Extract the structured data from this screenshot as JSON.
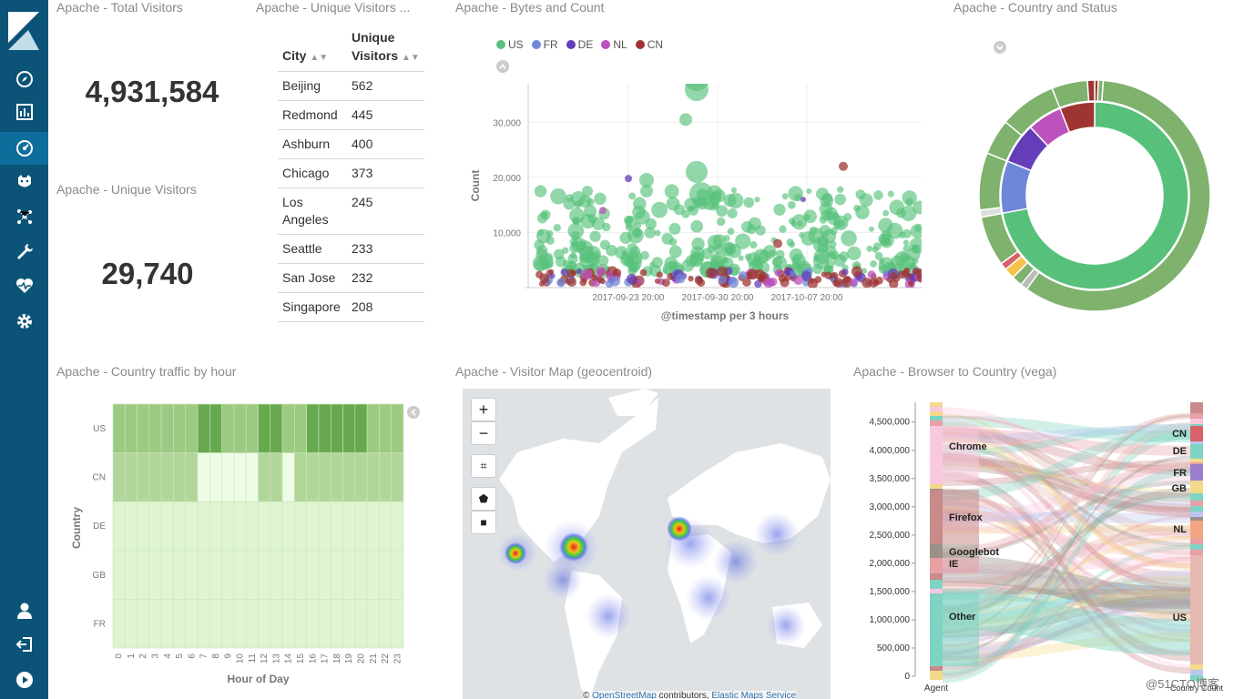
{
  "sidebar": {
    "items": [
      {
        "name": "discover-icon"
      },
      {
        "name": "visualize-icon"
      },
      {
        "name": "dashboard-icon"
      },
      {
        "name": "timelion-icon"
      },
      {
        "name": "graph-icon"
      },
      {
        "name": "dev-tools-icon"
      },
      {
        "name": "monitoring-icon"
      },
      {
        "name": "management-icon"
      }
    ],
    "bottom": [
      {
        "name": "user-icon"
      },
      {
        "name": "logout-icon"
      },
      {
        "name": "collapse-icon"
      }
    ]
  },
  "panels": {
    "total_visitors": {
      "title": "Apache - Total Visitors",
      "value": "4,931,584"
    },
    "unique_visitors_metric": {
      "title": "Apache - Unique Visitors",
      "value": "29,740"
    },
    "unique_visitors_table": {
      "title": "Apache - Unique Visitors ...",
      "columns": [
        "City",
        "Unique Visitors"
      ],
      "rows": [
        [
          "Beijing",
          "562"
        ],
        [
          "Redmond",
          "445"
        ],
        [
          "Ashburn",
          "400"
        ],
        [
          "Chicago",
          "373"
        ],
        [
          "Los Angeles",
          "245"
        ],
        [
          "Seattle",
          "233"
        ],
        [
          "San Jose",
          "232"
        ],
        [
          "Singapore",
          "208"
        ]
      ]
    },
    "bytes_count": {
      "title": "Apache - Bytes and Count"
    },
    "country_status": {
      "title": "Apache - Country and Status"
    },
    "traffic_by_hour": {
      "title": "Apache - Country traffic by hour"
    },
    "visitor_map": {
      "title": "Apache - Visitor Map (geocentroid)",
      "zoom_in": "+",
      "zoom_out": "−",
      "attribution_prefix": "© ",
      "attribution_osm": "OpenStreetMap",
      "attribution_mid": " contributors, ",
      "attribution_ems": "Elastic Maps Service"
    },
    "browser_country": {
      "title": "Apache - Browser to Country (vega)"
    }
  },
  "watermark": "@51CTO博客",
  "chart_data": [
    {
      "type": "scatter",
      "title": "",
      "xlabel": "@timestamp per 3 hours",
      "ylabel": "Count",
      "x_ticks": [
        "2017-09-23 20:00",
        "2017-09-30 20:00",
        "2017-10-07 20:00"
      ],
      "y_ticks": [
        10000,
        20000,
        30000
      ],
      "ylim": [
        0,
        37000
      ],
      "legend": [
        "US",
        "FR",
        "DE",
        "NL",
        "CN"
      ],
      "legend_position": "top-left",
      "colors": {
        "US": "#57c17b",
        "FR": "#6f87d8",
        "DE": "#663db8",
        "NL": "#bc52bc",
        "CN": "#9e3533"
      },
      "series": [
        {
          "name": "US",
          "approx_range": [
            2000,
            36000
          ]
        },
        {
          "name": "FR",
          "approx_range": [
            500,
            3000
          ]
        },
        {
          "name": "DE",
          "approx_range": [
            500,
            3000
          ]
        },
        {
          "name": "NL",
          "approx_range": [
            500,
            14000
          ]
        },
        {
          "name": "CN",
          "approx_range": [
            500,
            22000
          ]
        }
      ]
    },
    {
      "type": "pie",
      "donut": true,
      "inner_ring": [
        {
          "label": "US",
          "value": 72,
          "color": "#57c17b"
        },
        {
          "label": "FR",
          "value": 9,
          "color": "#6f87d8"
        },
        {
          "label": "DE",
          "value": 7,
          "color": "#663db8"
        },
        {
          "label": "NL",
          "value": 6,
          "color": "#bc52bc"
        },
        {
          "label": "CN",
          "value": 6,
          "color": "#9e3533"
        }
      ],
      "outer_ring_color": "#7eb26d"
    },
    {
      "type": "heatmap",
      "xlabel": "Hour of Day",
      "ylabel": "Country",
      "x": [
        "0",
        "1",
        "2",
        "3",
        "4",
        "5",
        "6",
        "7",
        "8",
        "9",
        "10",
        "11",
        "12",
        "13",
        "14",
        "15",
        "16",
        "17",
        "18",
        "19",
        "20",
        "21",
        "22",
        "23"
      ],
      "y": [
        "US",
        "CN",
        "DE",
        "GB",
        "FR"
      ],
      "levels": [
        [
          3,
          3,
          3,
          3,
          3,
          3,
          3,
          4,
          4,
          3,
          3,
          3,
          4,
          4,
          3,
          3,
          4,
          4,
          4,
          4,
          4,
          3,
          3,
          3
        ],
        [
          2,
          2,
          2,
          2,
          2,
          2,
          2,
          1,
          1,
          1,
          1,
          1,
          2,
          2,
          1,
          2,
          2,
          2,
          2,
          2,
          2,
          2,
          2,
          2
        ],
        [
          0,
          0,
          0,
          0,
          0,
          0,
          0,
          0,
          0,
          0,
          0,
          0,
          0,
          0,
          0,
          0,
          0,
          0,
          0,
          0,
          0,
          0,
          0,
          0
        ],
        [
          0,
          0,
          0,
          0,
          0,
          0,
          0,
          0,
          0,
          0,
          0,
          0,
          0,
          0,
          0,
          0,
          0,
          0,
          0,
          0,
          0,
          0,
          0,
          0
        ],
        [
          0,
          0,
          0,
          0,
          0,
          0,
          0,
          0,
          0,
          0,
          0,
          0,
          0,
          0,
          0,
          0,
          0,
          0,
          0,
          0,
          0,
          0,
          0,
          0
        ]
      ]
    },
    {
      "type": "sankey",
      "y_ticks": [
        "4,500,000",
        "4,000,000",
        "3,500,000",
        "3,000,000",
        "2,500,000",
        "2,000,000",
        "1,500,000",
        "1,000,000",
        "500,000",
        "0"
      ],
      "ylim": [
        0,
        4850000
      ],
      "left_axis_label": "Agent",
      "right_axis_label": "Country Count",
      "agents": [
        {
          "label": "Chrome",
          "value": 900000,
          "color": "#f9c8de"
        },
        {
          "label": "Firefox",
          "value": 1100000,
          "color": "#c88a8a"
        },
        {
          "label": "Googlebot",
          "value": 250000,
          "color": "#9a9189"
        },
        {
          "label": "IE",
          "value": 300000,
          "color": "#e8a0a5"
        },
        {
          "label": "Other",
          "value": 1600000,
          "color": "#7ed3c4"
        }
      ],
      "countries": [
        {
          "label": "CN",
          "value": 200000,
          "color": "#d8626a"
        },
        {
          "label": "DE",
          "value": 200000,
          "color": "#7ed3c4"
        },
        {
          "label": "FR",
          "value": 200000,
          "color": "#9a7ec9"
        },
        {
          "label": "GB",
          "value": 150000,
          "color": "#f5d98a"
        },
        {
          "label": "NL",
          "value": 250000,
          "color": "#f4a582"
        },
        {
          "label": "US",
          "value": 1800000,
          "color": "#e6b8b0"
        }
      ]
    }
  ]
}
